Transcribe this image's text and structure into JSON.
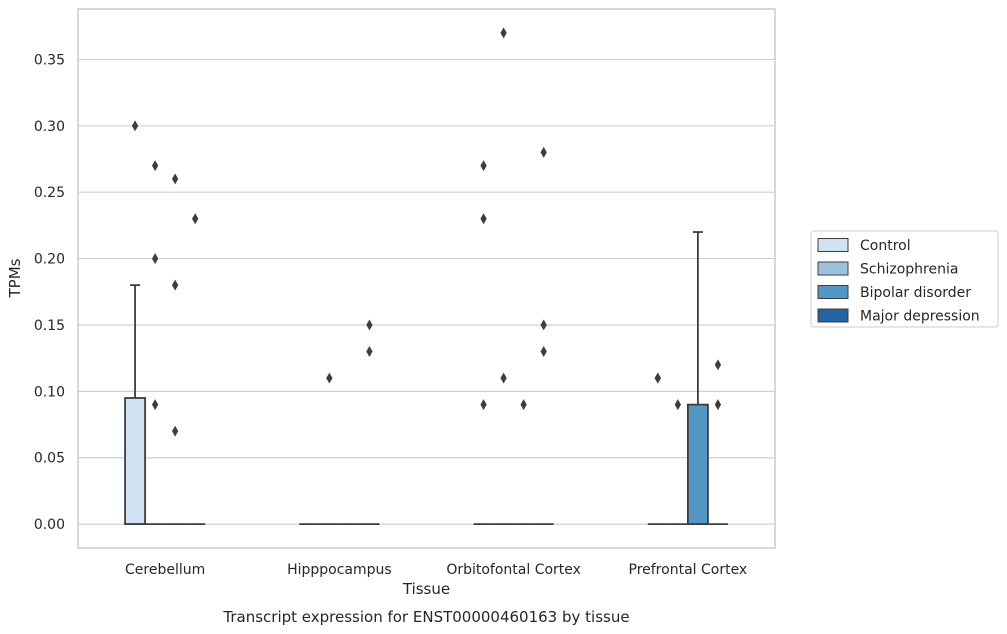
{
  "chart_data": {
    "type": "box",
    "xlabel": "Tissue",
    "ylabel": "TPMs",
    "caption": "Transcript expression for ENST00000460163 by tissue",
    "categories": [
      "Cerebellum",
      "Hipppocampus",
      "Orbitofontal Cortex",
      "Prefrontal Cortex"
    ],
    "ylim": [
      -0.018,
      0.388
    ],
    "yticks": [
      0.0,
      0.05,
      0.1,
      0.15,
      0.2,
      0.25,
      0.3,
      0.35
    ],
    "ytick_labels": [
      "0.00",
      "0.05",
      "0.10",
      "0.15",
      "0.20",
      "0.25",
      "0.30",
      "0.35"
    ],
    "grid": "horizontal",
    "legend_position": "right",
    "series": [
      {
        "name": "Control",
        "color": "#d1e2f2",
        "boxes": [
          {
            "q1": 0.0,
            "median": 0.0,
            "q3": 0.095,
            "whisker_low": 0.0,
            "whisker_high": 0.18,
            "outliers": [
              0.3
            ]
          },
          {
            "q1": 0.0,
            "median": 0.0,
            "q3": 0.0,
            "whisker_low": 0.0,
            "whisker_high": 0.0,
            "outliers": []
          },
          {
            "q1": 0.0,
            "median": 0.0,
            "q3": 0.0,
            "whisker_low": 0.0,
            "whisker_high": 0.0,
            "outliers": [
              0.09,
              0.23,
              0.27
            ]
          },
          {
            "q1": 0.0,
            "median": 0.0,
            "q3": 0.0,
            "whisker_low": 0.0,
            "whisker_high": 0.0,
            "outliers": [
              0.11,
              0.11
            ]
          }
        ]
      },
      {
        "name": "Schizophrenia",
        "color": "#9ac2dd",
        "boxes": [
          {
            "q1": 0.0,
            "median": 0.0,
            "q3": 0.0,
            "whisker_low": 0.0,
            "whisker_high": 0.0,
            "outliers": [
              0.09,
              0.2,
              0.27
            ]
          },
          {
            "q1": 0.0,
            "median": 0.0,
            "q3": 0.0,
            "whisker_low": 0.0,
            "whisker_high": 0.0,
            "outliers": [
              0.11
            ]
          },
          {
            "q1": 0.0,
            "median": 0.0,
            "q3": 0.0,
            "whisker_low": 0.0,
            "whisker_high": 0.0,
            "outliers": [
              0.11,
              0.37
            ]
          },
          {
            "q1": 0.0,
            "median": 0.0,
            "q3": 0.0,
            "whisker_low": 0.0,
            "whisker_high": 0.0,
            "outliers": [
              0.09
            ]
          }
        ]
      },
      {
        "name": "Bipolar disorder",
        "color": "#5497c5",
        "boxes": [
          {
            "q1": 0.0,
            "median": 0.0,
            "q3": 0.0,
            "whisker_low": 0.0,
            "whisker_high": 0.0,
            "outliers": [
              0.07,
              0.18,
              0.26
            ]
          },
          {
            "q1": 0.0,
            "median": 0.0,
            "q3": 0.0,
            "whisker_low": 0.0,
            "whisker_high": 0.0,
            "outliers": []
          },
          {
            "q1": 0.0,
            "median": 0.0,
            "q3": 0.0,
            "whisker_low": 0.0,
            "whisker_high": 0.0,
            "outliers": [
              0.09
            ]
          },
          {
            "q1": 0.0,
            "median": 0.0,
            "q3": 0.09,
            "whisker_low": 0.0,
            "whisker_high": 0.22,
            "outliers": []
          }
        ]
      },
      {
        "name": "Major depression",
        "color": "#2265a6",
        "boxes": [
          {
            "q1": 0.0,
            "median": 0.0,
            "q3": 0.0,
            "whisker_low": 0.0,
            "whisker_high": 0.0,
            "outliers": [
              0.23
            ]
          },
          {
            "q1": 0.0,
            "median": 0.0,
            "q3": 0.0,
            "whisker_low": 0.0,
            "whisker_high": 0.0,
            "outliers": [
              0.13,
              0.15
            ]
          },
          {
            "q1": 0.0,
            "median": 0.0,
            "q3": 0.0,
            "whisker_low": 0.0,
            "whisker_high": 0.0,
            "outliers": [
              0.13,
              0.15,
              0.28
            ]
          },
          {
            "q1": 0.0,
            "median": 0.0,
            "q3": 0.0,
            "whisker_low": 0.0,
            "whisker_high": 0.0,
            "outliers": [
              0.09,
              0.12
            ]
          }
        ]
      }
    ]
  }
}
